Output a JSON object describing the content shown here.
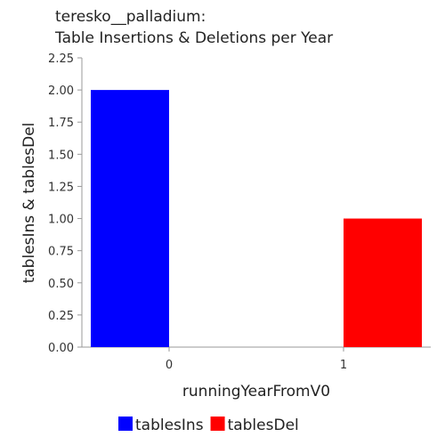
{
  "chart_data": {
    "type": "bar",
    "title_line1": "teresko__palladium:",
    "title_line2": "Table Insertions & Deletions per Year",
    "xlabel": "runningYearFromV0",
    "ylabel": "tablesIns & tablesDel",
    "categories": [
      "0",
      "1"
    ],
    "series": [
      {
        "name": "tablesIns",
        "values": [
          2,
          0
        ],
        "color": "#0000ff"
      },
      {
        "name": "tablesDel",
        "values": [
          0,
          1
        ],
        "color": "#ff0000"
      }
    ],
    "ylim": [
      0,
      2.25
    ],
    "yticks": [
      "0.00",
      "0.25",
      "0.50",
      "0.75",
      "1.00",
      "1.25",
      "1.50",
      "1.75",
      "2.00",
      "2.25"
    ],
    "grid": false,
    "legend_position": "bottom"
  }
}
